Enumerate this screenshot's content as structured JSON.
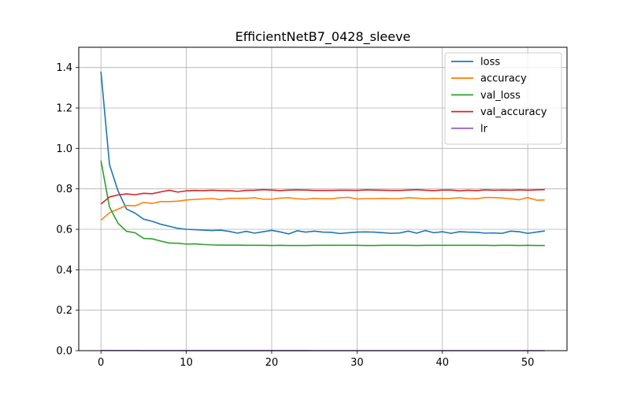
{
  "chart_data": {
    "type": "line",
    "title": "EfficientNetB7_0428_sleeve",
    "xlabel": "",
    "ylabel": "",
    "xlim": [
      -2.6,
      54.6
    ],
    "ylim": [
      0.0,
      1.5
    ],
    "xticks": [
      0,
      10,
      20,
      30,
      40,
      50
    ],
    "yticks": [
      0.0,
      0.2,
      0.4,
      0.6,
      0.8,
      1.0,
      1.2,
      1.4
    ],
    "grid": true,
    "legend_position": "top-right",
    "x": [
      0,
      1,
      2,
      3,
      4,
      5,
      6,
      7,
      8,
      9,
      10,
      11,
      12,
      13,
      14,
      15,
      16,
      17,
      18,
      19,
      20,
      21,
      22,
      23,
      24,
      25,
      26,
      27,
      28,
      29,
      30,
      31,
      32,
      33,
      34,
      35,
      36,
      37,
      38,
      39,
      40,
      41,
      42,
      43,
      44,
      45,
      46,
      47,
      48,
      49,
      50,
      51,
      52
    ],
    "series": [
      {
        "name": "loss",
        "color": "#1f77b4",
        "values": [
          1.38,
          0.92,
          0.79,
          0.7,
          0.68,
          0.65,
          0.64,
          0.625,
          0.615,
          0.605,
          0.6,
          0.598,
          0.596,
          0.594,
          0.596,
          0.59,
          0.581,
          0.59,
          0.581,
          0.588,
          0.595,
          0.587,
          0.577,
          0.593,
          0.586,
          0.591,
          0.586,
          0.585,
          0.579,
          0.583,
          0.586,
          0.587,
          0.586,
          0.583,
          0.58,
          0.582,
          0.591,
          0.581,
          0.594,
          0.583,
          0.588,
          0.58,
          0.588,
          0.586,
          0.585,
          0.581,
          0.582,
          0.58,
          0.591,
          0.588,
          0.58,
          0.586,
          0.592
        ]
      },
      {
        "name": "accuracy",
        "color": "#ff7f0e",
        "values": [
          0.645,
          0.682,
          0.7,
          0.718,
          0.716,
          0.733,
          0.728,
          0.737,
          0.737,
          0.739,
          0.745,
          0.748,
          0.75,
          0.752,
          0.747,
          0.753,
          0.753,
          0.753,
          0.756,
          0.749,
          0.749,
          0.754,
          0.756,
          0.751,
          0.749,
          0.753,
          0.751,
          0.751,
          0.756,
          0.758,
          0.75,
          0.752,
          0.752,
          0.753,
          0.752,
          0.752,
          0.756,
          0.754,
          0.751,
          0.753,
          0.752,
          0.753,
          0.756,
          0.752,
          0.751,
          0.757,
          0.757,
          0.755,
          0.751,
          0.746,
          0.757,
          0.744,
          0.745
        ]
      },
      {
        "name": "val_loss",
        "color": "#2ca02c",
        "values": [
          0.94,
          0.71,
          0.63,
          0.59,
          0.583,
          0.555,
          0.553,
          0.542,
          0.532,
          0.531,
          0.527,
          0.528,
          0.525,
          0.523,
          0.522,
          0.522,
          0.522,
          0.521,
          0.521,
          0.521,
          0.52,
          0.521,
          0.52,
          0.52,
          0.52,
          0.521,
          0.521,
          0.521,
          0.521,
          0.521,
          0.521,
          0.52,
          0.52,
          0.521,
          0.521,
          0.521,
          0.521,
          0.52,
          0.521,
          0.521,
          0.521,
          0.521,
          0.521,
          0.521,
          0.521,
          0.521,
          0.52,
          0.521,
          0.521,
          0.52,
          0.521,
          0.52,
          0.52
        ]
      },
      {
        "name": "val_accuracy",
        "color": "#d62728",
        "values": [
          0.725,
          0.76,
          0.77,
          0.775,
          0.771,
          0.778,
          0.776,
          0.785,
          0.793,
          0.784,
          0.79,
          0.792,
          0.791,
          0.793,
          0.791,
          0.791,
          0.788,
          0.792,
          0.793,
          0.796,
          0.794,
          0.791,
          0.794,
          0.795,
          0.794,
          0.792,
          0.792,
          0.792,
          0.793,
          0.793,
          0.792,
          0.795,
          0.794,
          0.793,
          0.792,
          0.792,
          0.794,
          0.796,
          0.793,
          0.791,
          0.794,
          0.794,
          0.79,
          0.793,
          0.791,
          0.795,
          0.793,
          0.794,
          0.793,
          0.795,
          0.793,
          0.795,
          0.796
        ]
      },
      {
        "name": "lr",
        "color": "#9467bd",
        "values": [
          0.001,
          0.001,
          0.001,
          0.001,
          0.001,
          0.0005,
          0.0005,
          0.0005,
          0.0005,
          0.0005,
          0.00025,
          0.00025,
          0.00025,
          0.00025,
          0.00025,
          0.000125,
          0.000125,
          0.000125,
          0.000125,
          0.000125,
          6.25e-05,
          6.25e-05,
          6.25e-05,
          6.25e-05,
          6.25e-05,
          3e-05,
          3e-05,
          3e-05,
          3e-05,
          3e-05,
          2e-05,
          2e-05,
          2e-05,
          2e-05,
          2e-05,
          1e-05,
          1e-05,
          1e-05,
          1e-05,
          1e-05,
          1e-05,
          1e-05,
          1e-05,
          1e-05,
          1e-05,
          1e-05,
          1e-05,
          1e-05,
          1e-05,
          1e-05,
          1e-05,
          1e-05,
          1e-05
        ]
      }
    ]
  },
  "colors": {
    "axis": "#000000",
    "grid": "#b0b0b0",
    "legend_border": "#cccccc"
  }
}
